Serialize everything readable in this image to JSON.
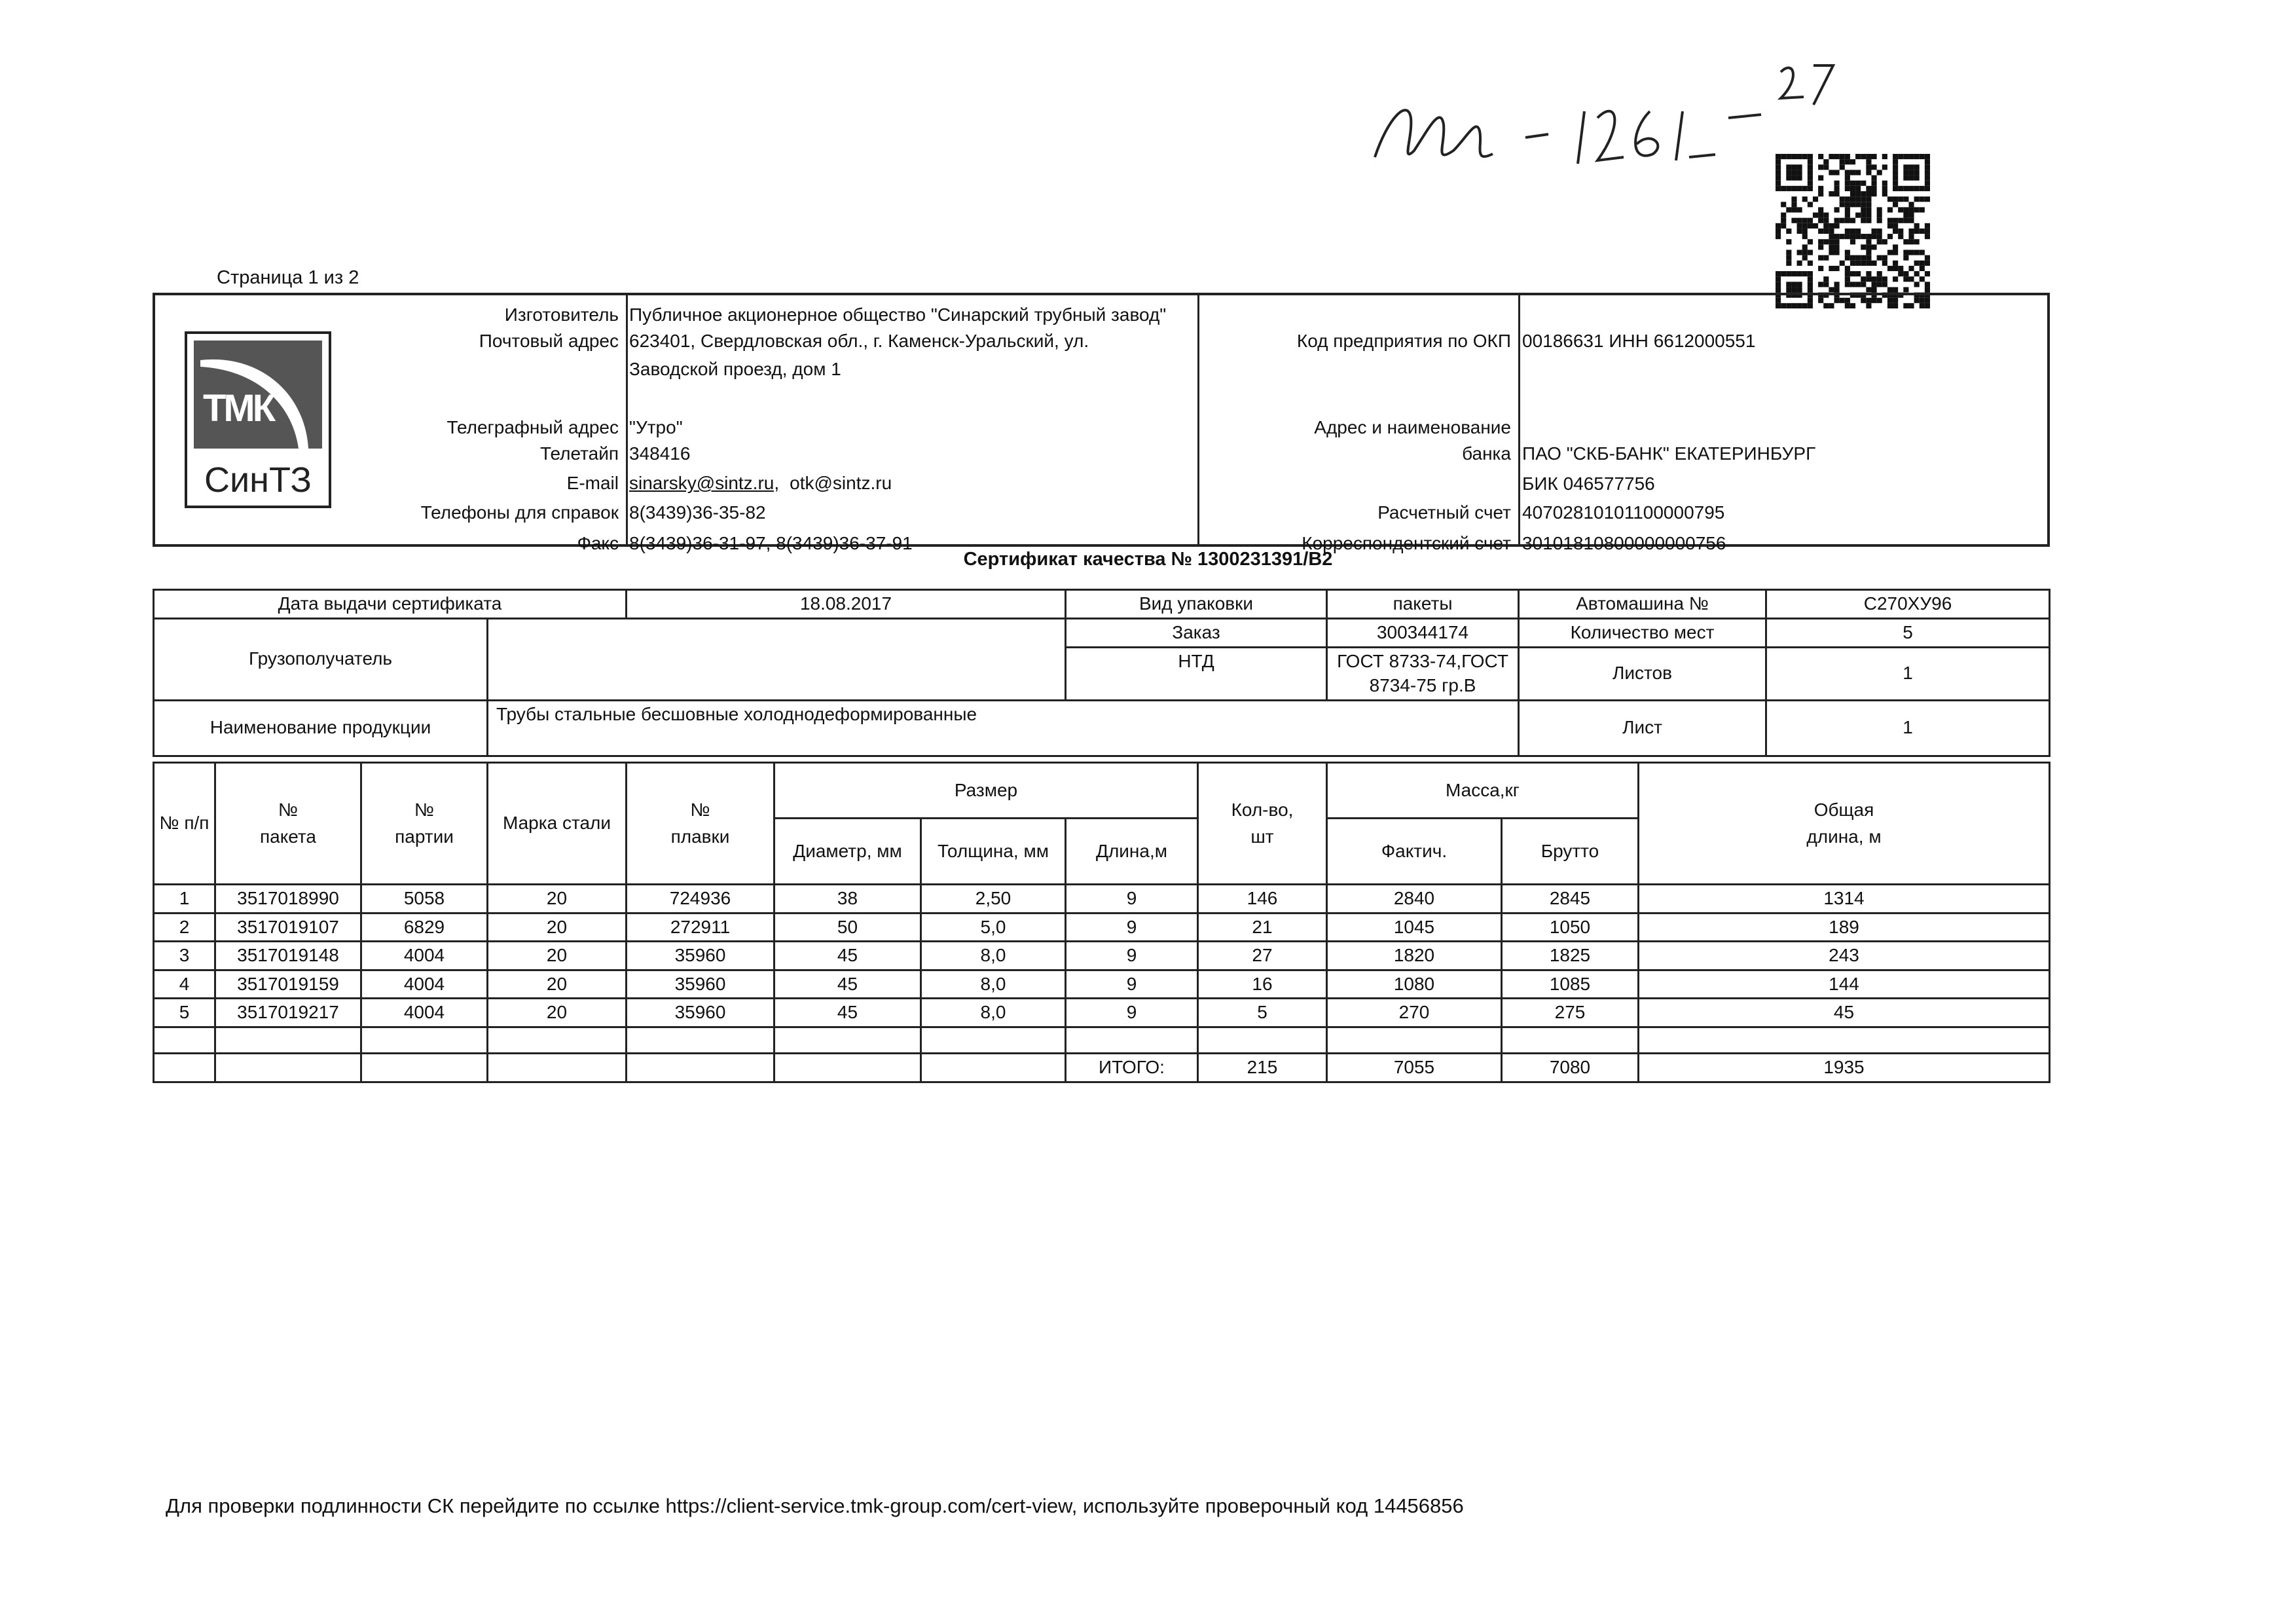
{
  "handwritten_note": "М-1261-27",
  "page_label": "Страница 1 из 2",
  "logo": {
    "top": "ТМК",
    "bottom": "СинТЗ"
  },
  "header": {
    "left": [
      {
        "label": "Изготовитель",
        "value": "Публичное акционерное общество \"Синарский трубный завод\""
      },
      {
        "label": "Почтовый адрес",
        "value": "623401, Свердловская обл., г. Каменск-Уральский, ул."
      },
      {
        "label": "",
        "value": "Заводской проезд, дом 1"
      },
      {
        "label": "Телеграфный адрес",
        "value": "\"Утро\""
      },
      {
        "label": "Телетайп",
        "value": "348416"
      },
      {
        "label": "E-mail",
        "value": "sinarsky@sintz.ru,",
        "value2": "otk@sintz.ru"
      },
      {
        "label": "Телефоны для справок",
        "value": "8(3439)36-35-82"
      },
      {
        "label": "Факс",
        "value": "8(3439)36-31-97, 8(3439)36-37-91"
      }
    ],
    "right": [
      {
        "label": "Код предприятия по ОКП",
        "value": "00186631 ИНН 6612000551"
      },
      {
        "label": "Адрес и наименование",
        "value": ""
      },
      {
        "label": "банка",
        "value": "ПАО \"СКБ-БАНК\" ЕКАТЕРИНБУРГ"
      },
      {
        "label": "",
        "value": "БИК 046577756"
      },
      {
        "label": "Расчетный счет",
        "value": "40702810101100000795"
      },
      {
        "label": "Корреспондентский счет",
        "value": "30101810800000000756"
      }
    ]
  },
  "certificate_title": "Сертификат качества № 1300231391/B2",
  "info": {
    "issue_date_label": "Дата выдачи сертификата",
    "issue_date": "18.08.2017",
    "packaging_label": "Вид упаковки",
    "packaging": "пакеты",
    "vehicle_label": "Автомашина №",
    "vehicle": "С270ХУ96",
    "consignee_label": "Грузополучатель",
    "consignee": "",
    "order_label": "Заказ",
    "order": "300344174",
    "places_label": "Количество мест",
    "places": "5",
    "ntd_label": "НТД",
    "ntd": "ГОСТ 8733-74,ГОСТ 8734-75 гр.В",
    "sheets_label": "Листов",
    "sheets": "1",
    "product_label": "Наименование продукции",
    "product": "Трубы стальные бесшовные холоднодеформированные",
    "sheet_label": "Лист",
    "sheet": "1"
  },
  "table": {
    "headers": {
      "num": "№ п/п",
      "package": "№ пакета",
      "batch": "№ партии",
      "steel": "Марка стали",
      "heat": "№ плавки",
      "size": "Размер",
      "diameter": "Диаметр, мм",
      "thickness": "Толщина, мм",
      "length": "Длина,м",
      "qty": "Кол-во, шт",
      "mass": "Масса,кг",
      "actual": "Фактич.",
      "gross": "Брутто",
      "total_length": "Общая длина, м"
    },
    "rows": [
      [
        "1",
        "3517018990",
        "5058",
        "20",
        "724936",
        "38",
        "2,50",
        "9",
        "146",
        "2840",
        "2845",
        "1314"
      ],
      [
        "2",
        "3517019107",
        "6829",
        "20",
        "272911",
        "50",
        "5,0",
        "9",
        "21",
        "1045",
        "1050",
        "189"
      ],
      [
        "3",
        "3517019148",
        "4004",
        "20",
        "35960",
        "45",
        "8,0",
        "9",
        "27",
        "1820",
        "1825",
        "243"
      ],
      [
        "4",
        "3517019159",
        "4004",
        "20",
        "35960",
        "45",
        "8,0",
        "9",
        "16",
        "1080",
        "1085",
        "144"
      ],
      [
        "5",
        "3517019217",
        "4004",
        "20",
        "35960",
        "45",
        "8,0",
        "9",
        "5",
        "270",
        "275",
        "45"
      ]
    ],
    "total_label": "ИТОГО:",
    "totals": {
      "qty": "215",
      "actual": "7055",
      "gross": "7080",
      "total_length": "1935"
    }
  },
  "footer": "Для проверки подлинности СК перейдите по ссылке https://client-service.tmk-group.com/cert-view, используйте проверочный код 14456856"
}
